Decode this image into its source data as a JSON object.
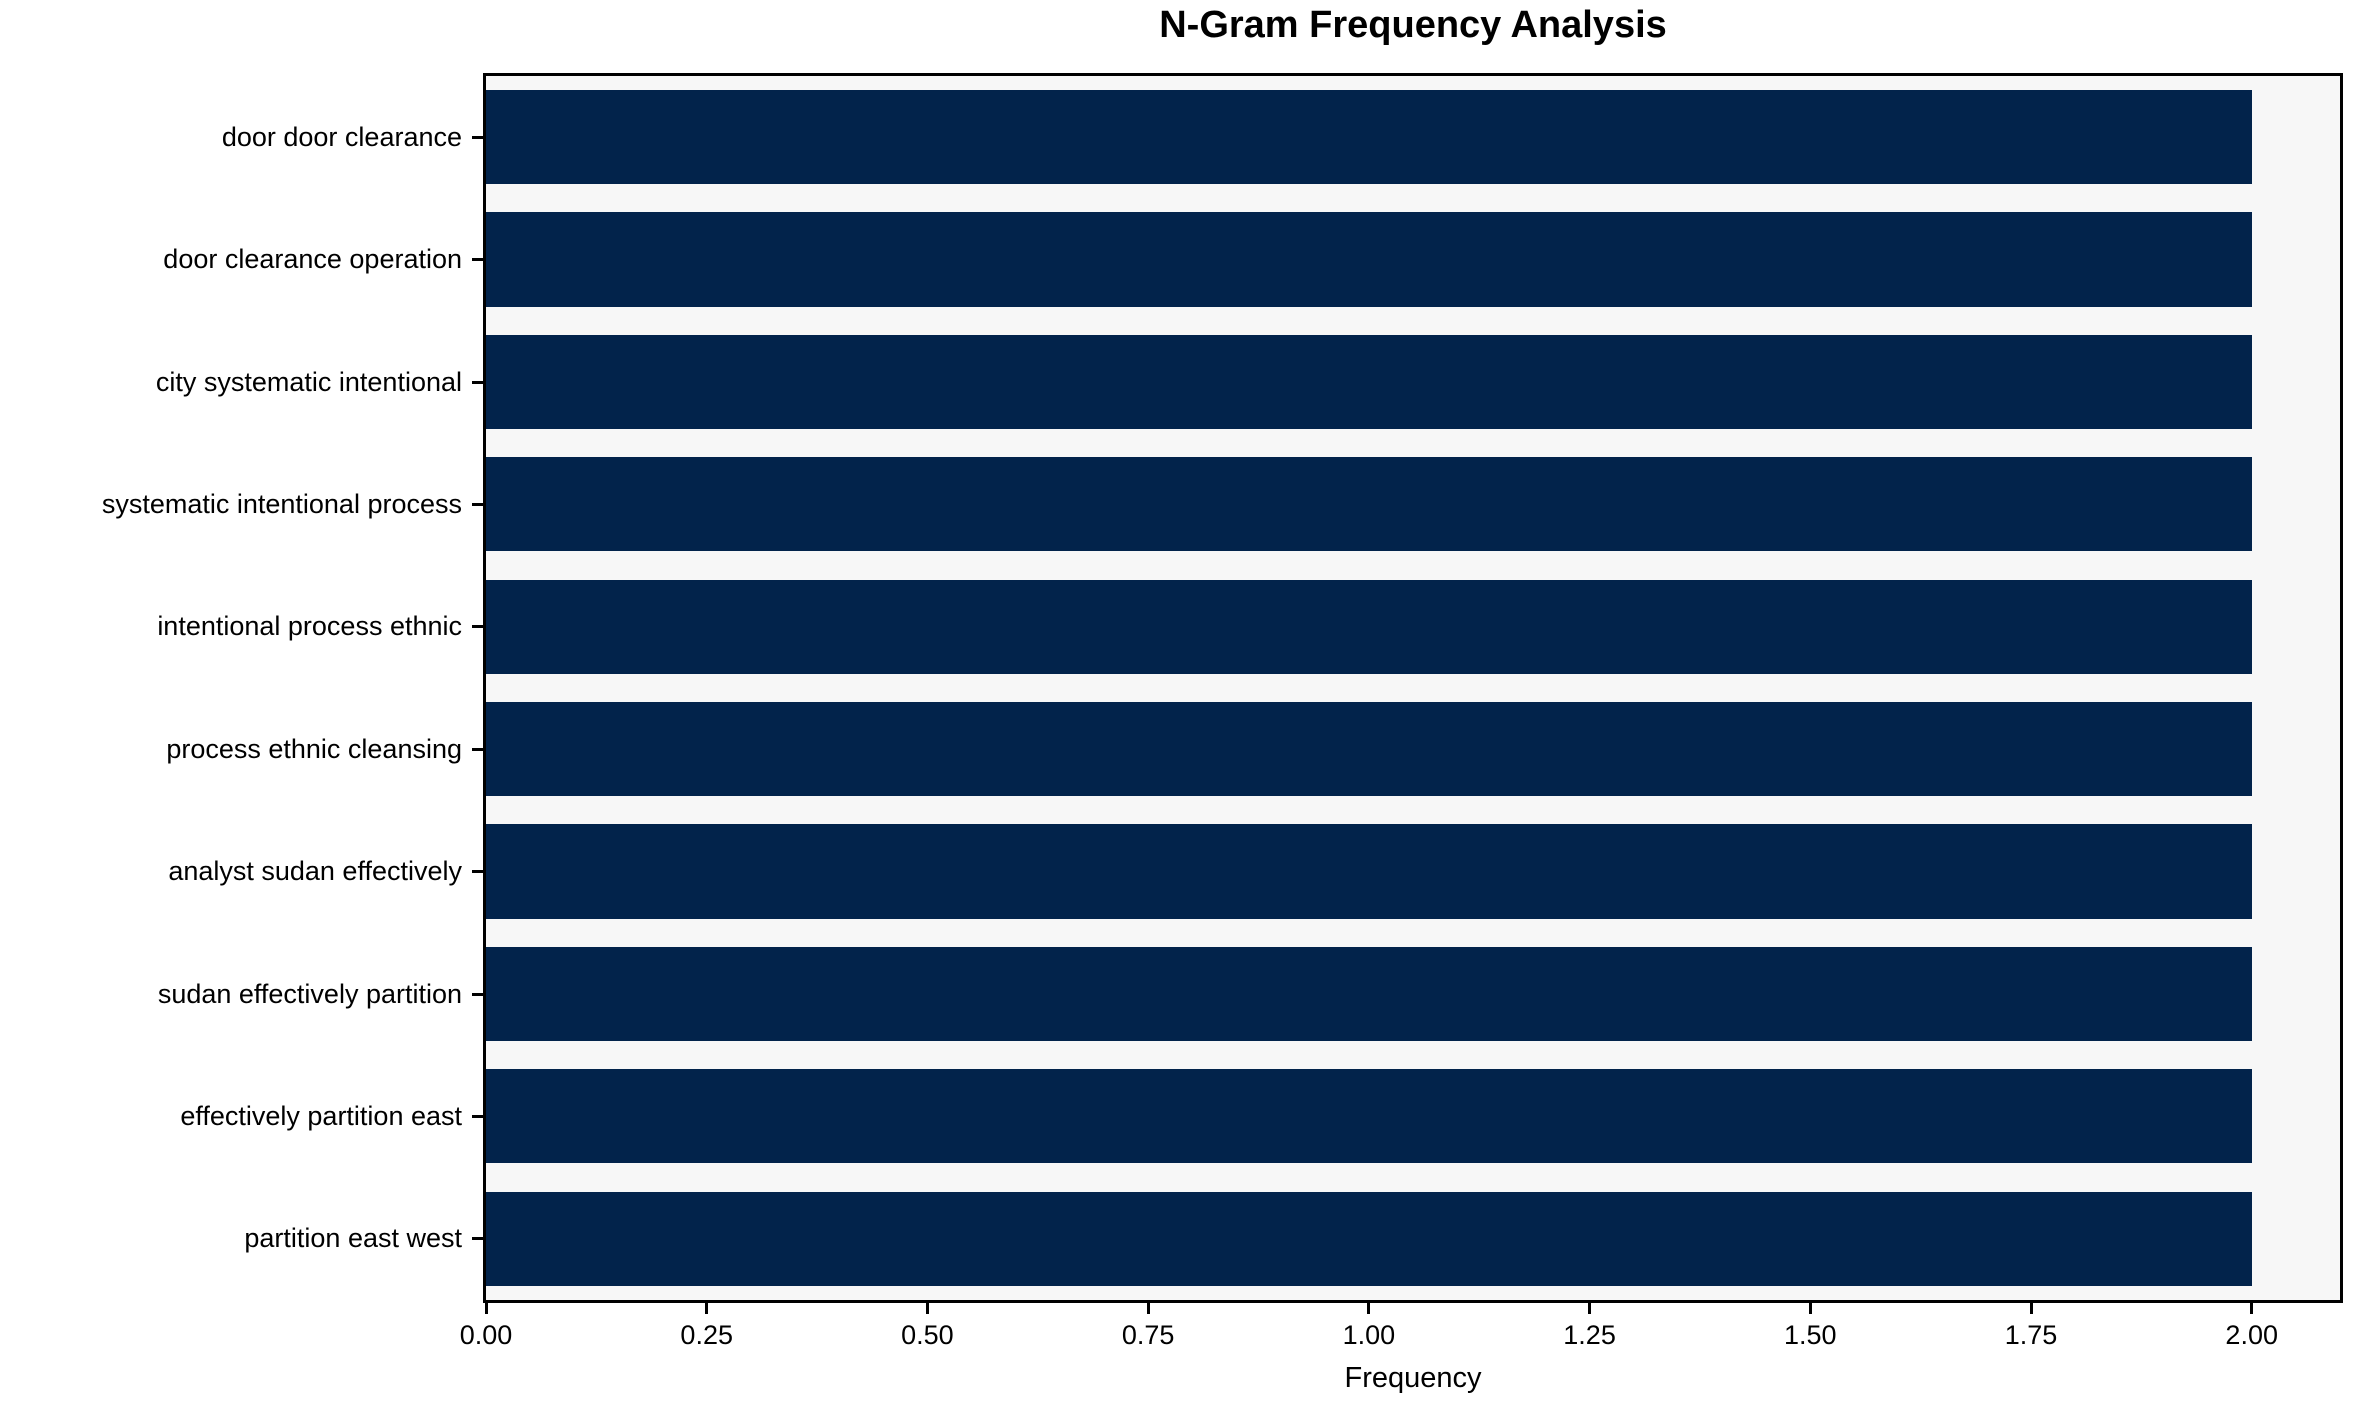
{
  "chart_data": {
    "type": "bar",
    "orientation": "horizontal",
    "title": "N-Gram Frequency Analysis",
    "xlabel": "Frequency",
    "ylabel": "",
    "categories": [
      "door door clearance",
      "door clearance operation",
      "city systematic intentional",
      "systematic intentional process",
      "intentional process ethnic",
      "process ethnic cleansing",
      "analyst sudan effectively",
      "sudan effectively partition",
      "effectively partition east",
      "partition east west"
    ],
    "values": [
      2,
      2,
      2,
      2,
      2,
      2,
      2,
      2,
      2,
      2
    ],
    "xlim": [
      0,
      2.1
    ],
    "xticks": [
      {
        "value": 0.0,
        "label": "0.00"
      },
      {
        "value": 0.25,
        "label": "0.25"
      },
      {
        "value": 0.5,
        "label": "0.50"
      },
      {
        "value": 0.75,
        "label": "0.75"
      },
      {
        "value": 1.0,
        "label": "1.00"
      },
      {
        "value": 1.25,
        "label": "1.25"
      },
      {
        "value": 1.5,
        "label": "1.50"
      },
      {
        "value": 1.75,
        "label": "1.75"
      },
      {
        "value": 2.0,
        "label": "2.00"
      }
    ],
    "grid": false,
    "legend": null,
    "colors": {
      "bar": "#02234b",
      "plot_background": "#f7f7f7",
      "figure_background": "#ffffff",
      "spine": "#000000",
      "text": "#000000"
    }
  }
}
